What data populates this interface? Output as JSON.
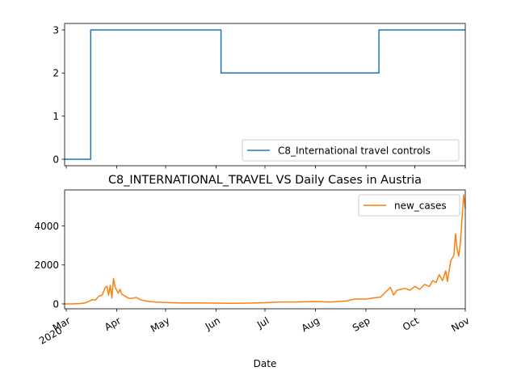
{
  "chart_data": [
    {
      "type": "line",
      "title": "",
      "xlabel": "",
      "ylabel": "",
      "xlim": [
        "2020-02-29",
        "2020-11-01"
      ],
      "ylim": [
        -0.15,
        3.15
      ],
      "yticks": [
        "0",
        "1",
        "2",
        "3"
      ],
      "legend_position": "lower-right",
      "series": [
        {
          "name": "C8_International travel controls",
          "color": "#1f77b4",
          "steps": [
            {
              "from": "2020-02-29",
              "to": "2020-03-16",
              "value": 0
            },
            {
              "from": "2020-03-16",
              "to": "2020-06-04",
              "value": 3
            },
            {
              "from": "2020-06-04",
              "to": "2020-09-09",
              "value": 2
            },
            {
              "from": "2020-09-09",
              "to": "2020-11-01",
              "value": 3
            }
          ]
        }
      ]
    },
    {
      "type": "line",
      "title": "C8_INTERNATIONAL_TRAVEL VS Daily Cases in Austria",
      "xlabel": "Date",
      "ylabel": "",
      "xlim": [
        "2020-02-29",
        "2020-11-01"
      ],
      "ylim": [
        -250,
        5850
      ],
      "yticks": [
        "0",
        "2000",
        "4000"
      ],
      "xticklabels": [
        {
          "date": "2020-03-01",
          "label": "Mar\n2020"
        },
        {
          "date": "2020-04-01",
          "label": "Apr"
        },
        {
          "date": "2020-05-01",
          "label": "May"
        },
        {
          "date": "2020-06-01",
          "label": "Jun"
        },
        {
          "date": "2020-07-01",
          "label": "Jul"
        },
        {
          "date": "2020-08-01",
          "label": "Aug"
        },
        {
          "date": "2020-09-01",
          "label": "Sep"
        },
        {
          "date": "2020-10-01",
          "label": "Oct"
        },
        {
          "date": "2020-11-01",
          "label": "Nov"
        }
      ],
      "legend_position": "top-right",
      "series": [
        {
          "name": "new_cases",
          "color": "#ff7f0e",
          "points": [
            [
              "2020-02-29",
              0
            ],
            [
              "2020-03-05",
              5
            ],
            [
              "2020-03-10",
              20
            ],
            [
              "2020-03-13",
              60
            ],
            [
              "2020-03-15",
              130
            ],
            [
              "2020-03-17",
              220
            ],
            [
              "2020-03-19",
              200
            ],
            [
              "2020-03-21",
              400
            ],
            [
              "2020-03-23",
              450
            ],
            [
              "2020-03-25",
              850
            ],
            [
              "2020-03-26",
              900
            ],
            [
              "2020-03-27",
              450
            ],
            [
              "2020-03-28",
              950
            ],
            [
              "2020-03-29",
              300
            ],
            [
              "2020-03-30",
              1300
            ],
            [
              "2020-03-31",
              850
            ],
            [
              "2020-04-01",
              700
            ],
            [
              "2020-04-02",
              550
            ],
            [
              "2020-04-03",
              750
            ],
            [
              "2020-04-04",
              500
            ],
            [
              "2020-04-06",
              400
            ],
            [
              "2020-04-08",
              300
            ],
            [
              "2020-04-10",
              280
            ],
            [
              "2020-04-13",
              330
            ],
            [
              "2020-04-16",
              200
            ],
            [
              "2020-04-20",
              130
            ],
            [
              "2020-04-25",
              90
            ],
            [
              "2020-05-01",
              70
            ],
            [
              "2020-05-10",
              50
            ],
            [
              "2020-05-20",
              50
            ],
            [
              "2020-06-01",
              40
            ],
            [
              "2020-06-10",
              30
            ],
            [
              "2020-06-20",
              40
            ],
            [
              "2020-07-01",
              60
            ],
            [
              "2020-07-10",
              100
            ],
            [
              "2020-07-20",
              100
            ],
            [
              "2020-08-01",
              120
            ],
            [
              "2020-08-10",
              100
            ],
            [
              "2020-08-20",
              150
            ],
            [
              "2020-08-25",
              250
            ],
            [
              "2020-09-01",
              250
            ],
            [
              "2020-09-05",
              300
            ],
            [
              "2020-09-10",
              350
            ],
            [
              "2020-09-13",
              600
            ],
            [
              "2020-09-16",
              850
            ],
            [
              "2020-09-18",
              450
            ],
            [
              "2020-09-20",
              700
            ],
            [
              "2020-09-25",
              800
            ],
            [
              "2020-09-28",
              700
            ],
            [
              "2020-10-01",
              900
            ],
            [
              "2020-10-04",
              750
            ],
            [
              "2020-10-07",
              1000
            ],
            [
              "2020-10-10",
              900
            ],
            [
              "2020-10-12",
              1200
            ],
            [
              "2020-10-14",
              1100
            ],
            [
              "2020-10-16",
              1500
            ],
            [
              "2020-10-18",
              1200
            ],
            [
              "2020-10-20",
              1700
            ],
            [
              "2020-10-21",
              1150
            ],
            [
              "2020-10-23",
              2200
            ],
            [
              "2020-10-25",
              2500
            ],
            [
              "2020-10-26",
              3600
            ],
            [
              "2020-10-27",
              2800
            ],
            [
              "2020-10-28",
              2450
            ],
            [
              "2020-10-29",
              3200
            ],
            [
              "2020-10-30",
              4400
            ],
            [
              "2020-10-31",
              5600
            ],
            [
              "2020-11-01",
              4900
            ]
          ]
        }
      ]
    }
  ]
}
